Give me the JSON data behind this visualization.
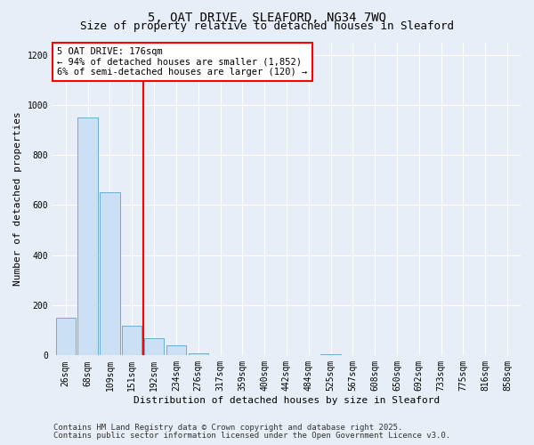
{
  "title_line1": "5, OAT DRIVE, SLEAFORD, NG34 7WQ",
  "title_line2": "Size of property relative to detached houses in Sleaford",
  "xlabel": "Distribution of detached houses by size in Sleaford",
  "ylabel": "Number of detached properties",
  "categories": [
    "26sqm",
    "68sqm",
    "109sqm",
    "151sqm",
    "192sqm",
    "234sqm",
    "276sqm",
    "317sqm",
    "359sqm",
    "400sqm",
    "442sqm",
    "484sqm",
    "525sqm",
    "567sqm",
    "608sqm",
    "650sqm",
    "692sqm",
    "733sqm",
    "775sqm",
    "816sqm",
    "858sqm"
  ],
  "values": [
    150,
    950,
    650,
    120,
    70,
    40,
    10,
    0,
    0,
    0,
    0,
    0,
    5,
    0,
    0,
    0,
    0,
    0,
    0,
    0,
    0
  ],
  "bar_color": "#cce0f5",
  "bar_edge_color": "#6aaed6",
  "vline_color": "red",
  "vline_x": 3.5,
  "annotation_text": "5 OAT DRIVE: 176sqm\n← 94% of detached houses are smaller (1,852)\n6% of semi-detached houses are larger (120) →",
  "annotation_box_color": "white",
  "annotation_box_edge_color": "red",
  "ylim": [
    0,
    1250
  ],
  "yticks": [
    0,
    200,
    400,
    600,
    800,
    1000,
    1200
  ],
  "footer_line1": "Contains HM Land Registry data © Crown copyright and database right 2025.",
  "footer_line2": "Contains public sector information licensed under the Open Government Licence v3.0.",
  "bg_color": "#e8eef7",
  "plot_bg_color": "#e8eef7",
  "grid_color": "white",
  "title_fontsize": 10,
  "subtitle_fontsize": 9,
  "axis_label_fontsize": 8,
  "tick_fontsize": 7,
  "annotation_fontsize": 7.5,
  "footer_fontsize": 6.5
}
